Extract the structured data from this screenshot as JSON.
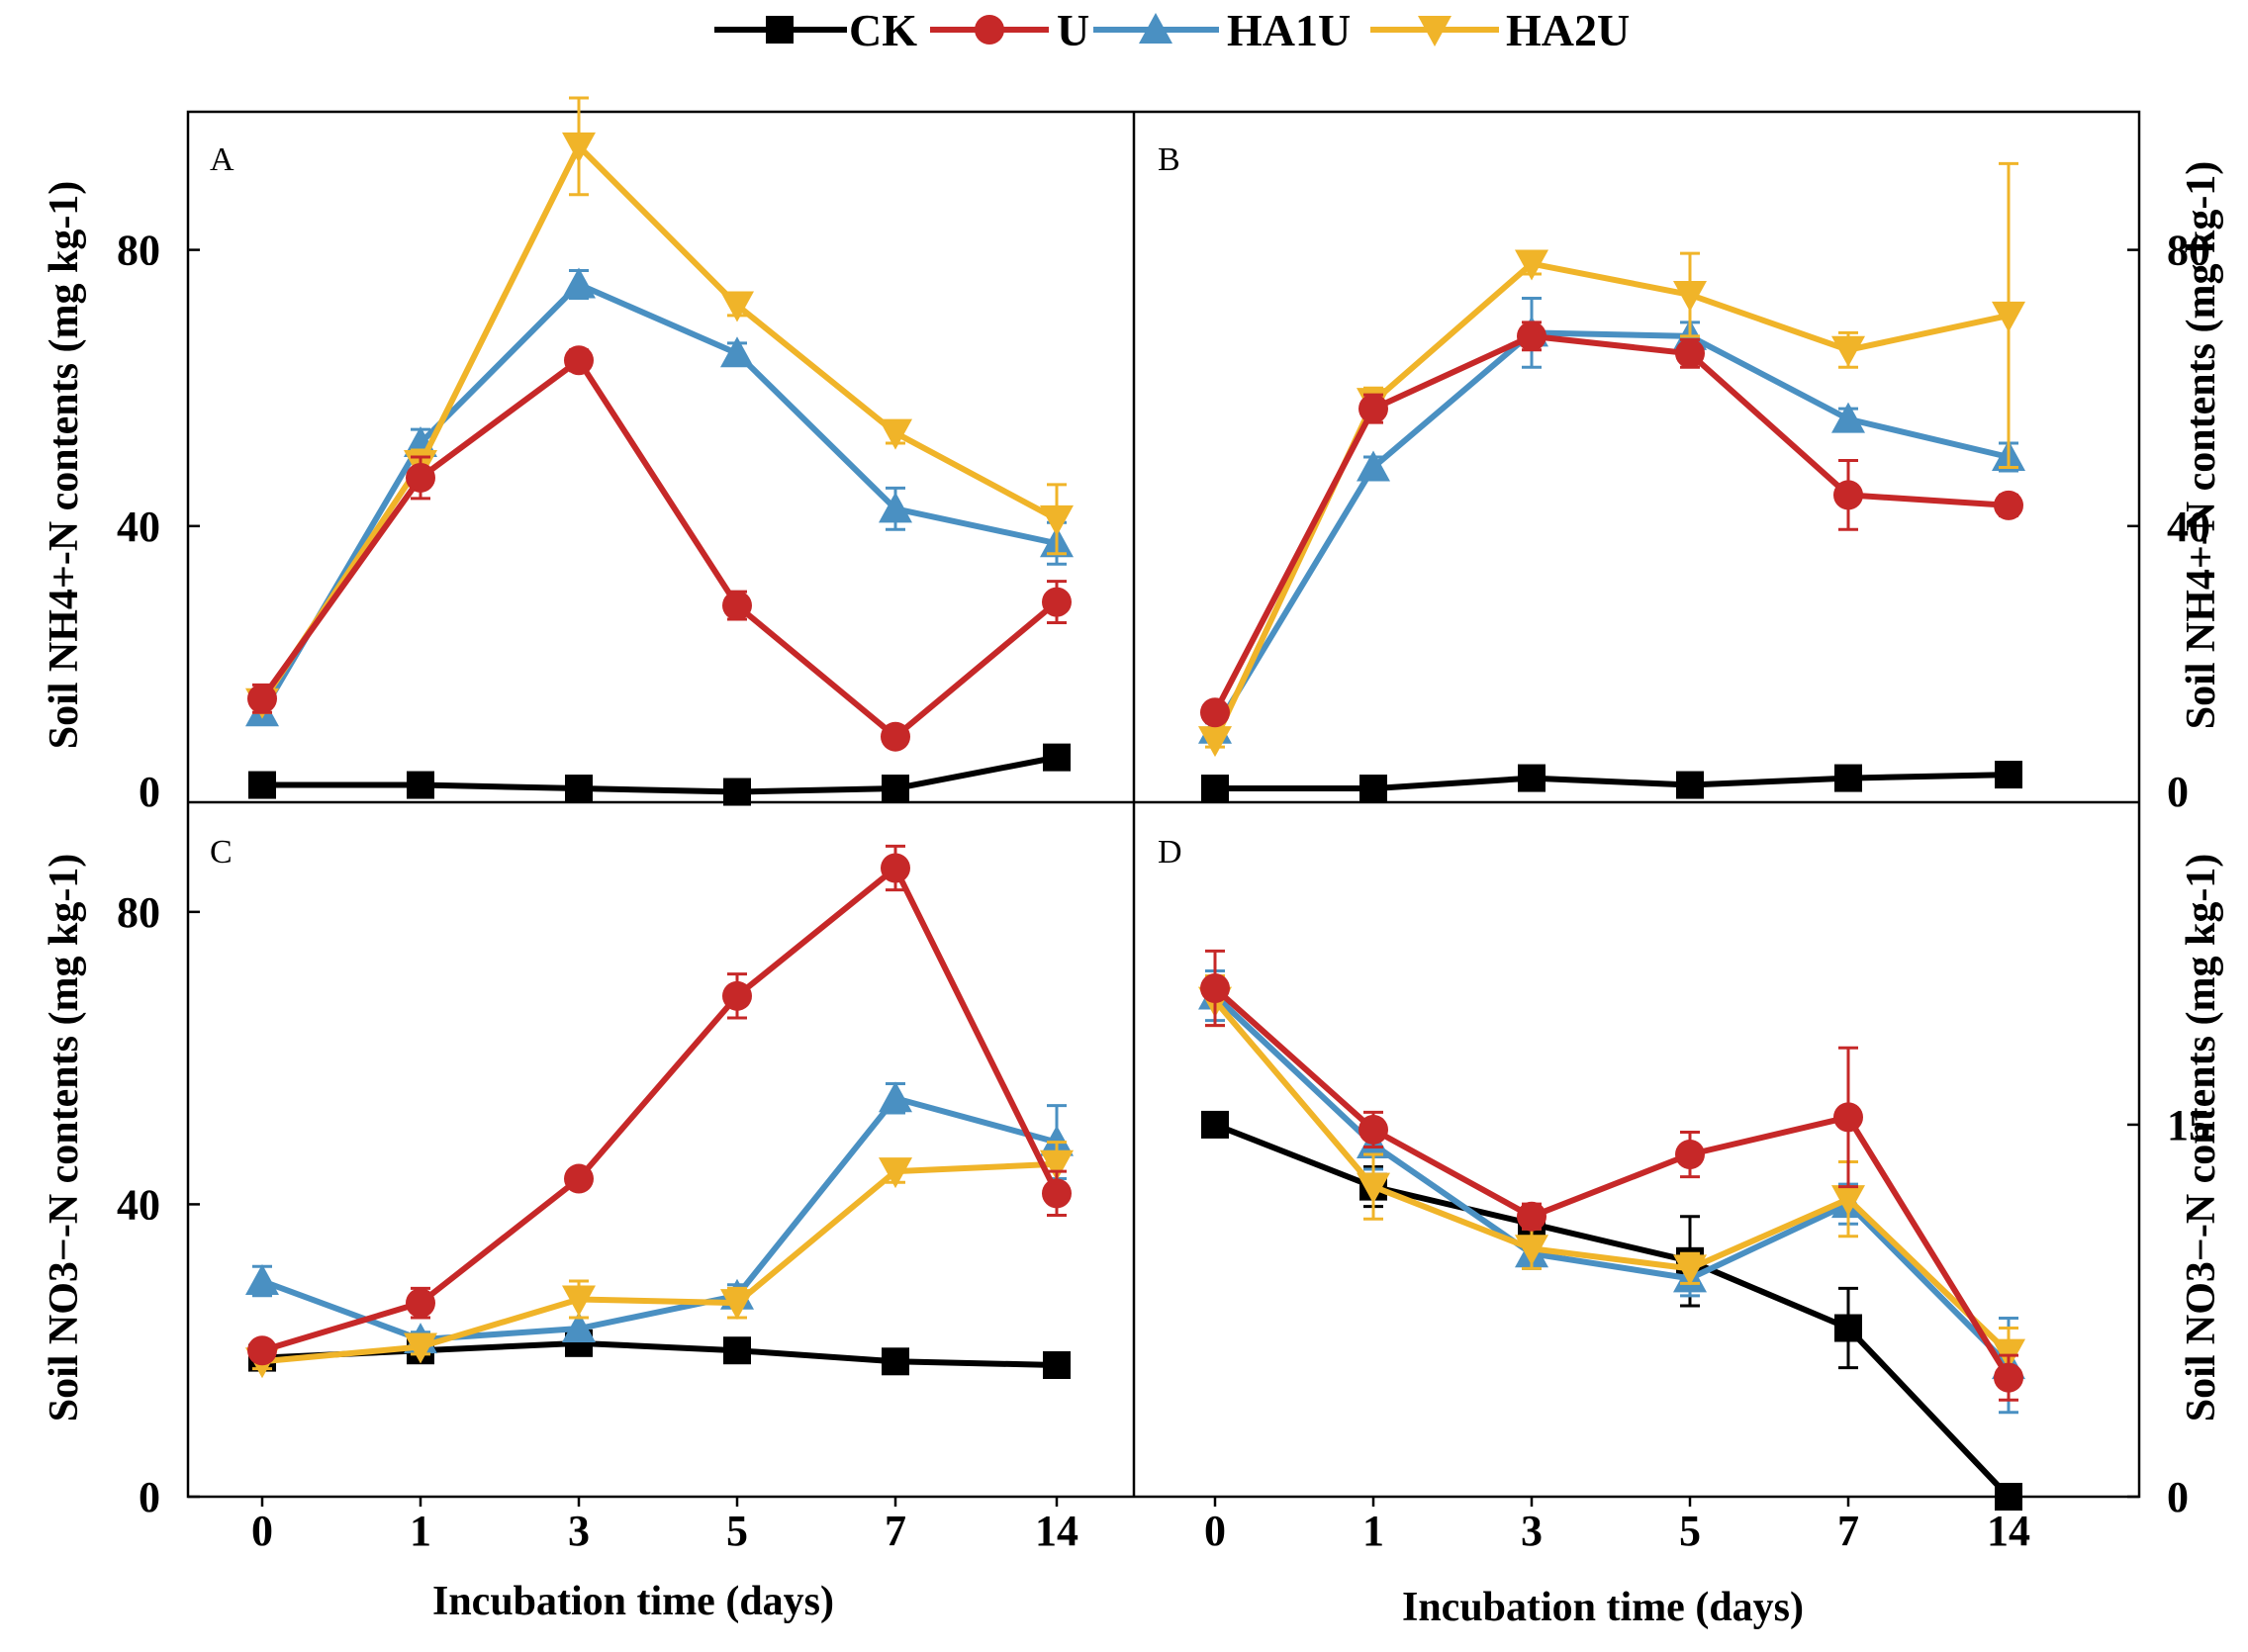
{
  "legend": [
    {
      "name": "CK",
      "color": "#000000",
      "marker": "square"
    },
    {
      "name": "U",
      "color": "#c62828",
      "marker": "circle"
    },
    {
      "name": "HA1U",
      "color": "#4a90c2",
      "marker": "triangle-up"
    },
    {
      "name": "HA2U",
      "color": "#f0b429",
      "marker": "triangle-down"
    }
  ],
  "axis_titles": {
    "x": "Incubation time (days)",
    "left_top": "Soil NH4+-N contents (mg kg-1)",
    "left_bottom": "Soil NO3−-N contents (mg kg-1)",
    "right_top": "Soil NH4+-N contents (mg kg-1)",
    "right_bottom": "Soil NO3−-N contents (mg kg-1)"
  },
  "chart_data": [
    {
      "panel": "A",
      "type": "line",
      "categories": [
        "0",
        "1",
        "3",
        "5",
        "7",
        "14"
      ],
      "ylim": [
        0,
        100
      ],
      "yticks": [
        0,
        40,
        80
      ],
      "series": [
        {
          "name": "CK",
          "values": [
            2.5,
            2.5,
            2,
            1.5,
            2,
            6.5
          ],
          "errors": [
            1,
            1,
            1,
            1,
            1,
            1
          ]
        },
        {
          "name": "U",
          "values": [
            15,
            47,
            64,
            28.5,
            9.5,
            29
          ],
          "errors": [
            2,
            3,
            1.5,
            2,
            1,
            3
          ]
        },
        {
          "name": "HA1U",
          "values": [
            13,
            52,
            75,
            65,
            42.5,
            37.5
          ],
          "errors": [
            1.5,
            2,
            2,
            1.5,
            3,
            3
          ]
        },
        {
          "name": "HA2U",
          "values": [
            14.5,
            49,
            95,
            72,
            53.5,
            41
          ],
          "errors": [
            1.5,
            2,
            7,
            1.5,
            1.5,
            5
          ]
        }
      ]
    },
    {
      "panel": "B",
      "type": "line",
      "categories": [
        "0",
        "1",
        "3",
        "5",
        "7",
        "14"
      ],
      "ylim": [
        0,
        100
      ],
      "yticks": [
        0,
        40,
        80
      ],
      "series": [
        {
          "name": "CK",
          "values": [
            2,
            2,
            3.5,
            2.5,
            3.5,
            4
          ],
          "errors": [
            1,
            1,
            1,
            1,
            1,
            1
          ]
        },
        {
          "name": "U",
          "values": [
            13,
            57,
            67.5,
            65,
            44.5,
            43
          ],
          "errors": [
            1,
            2,
            2,
            2,
            5,
            1.5
          ]
        },
        {
          "name": "HA1U",
          "values": [
            10.5,
            48.5,
            68,
            67.5,
            55.5,
            50
          ],
          "errors": [
            1,
            1.5,
            5,
            2,
            1.5,
            2
          ]
        },
        {
          "name": "HA2U",
          "values": [
            9,
            58,
            78,
            73.5,
            65.5,
            70.5
          ],
          "errors": [
            1,
            2,
            1.5,
            6,
            2.5,
            22
          ]
        }
      ]
    },
    {
      "panel": "C",
      "type": "line",
      "categories": [
        "0",
        "1",
        "3",
        "5",
        "7",
        "14"
      ],
      "ylim": [
        0,
        95
      ],
      "yticks": [
        0,
        40,
        80
      ],
      "series": [
        {
          "name": "CK",
          "values": [
            19,
            20,
            21,
            20,
            18.5,
            18
          ],
          "errors": [
            1,
            1,
            1,
            1,
            1,
            1
          ]
        },
        {
          "name": "U",
          "values": [
            20,
            26.5,
            43.5,
            68.5,
            86,
            41.5
          ],
          "errors": [
            1,
            2,
            1,
            3,
            3,
            3
          ]
        },
        {
          "name": "HA1U",
          "values": [
            29.5,
            21.5,
            23,
            27.5,
            54.5,
            48.5
          ],
          "errors": [
            2,
            1,
            1.5,
            1.5,
            2,
            5
          ]
        },
        {
          "name": "HA2U",
          "values": [
            18.5,
            20.5,
            27,
            26.5,
            44.5,
            45.5
          ],
          "errors": [
            1,
            1,
            2.5,
            2,
            1.5,
            3
          ]
        }
      ]
    },
    {
      "panel": "D",
      "type": "line",
      "categories": [
        "0",
        "1",
        "3",
        "5",
        "7",
        "14"
      ],
      "ylim": [
        0,
        28
      ],
      "yticks": [
        0,
        15
      ],
      "series": [
        {
          "name": "CK",
          "values": [
            15,
            12.5,
            11,
            9.5,
            6.8,
            0
          ],
          "errors": [
            0.4,
            0.8,
            0.6,
            1.8,
            1.6,
            0.2
          ]
        },
        {
          "name": "U",
          "values": [
            20.5,
            14.8,
            11.3,
            13.8,
            15.3,
            4.8
          ],
          "errors": [
            1.5,
            0.7,
            0.5,
            0.9,
            2.8,
            0.9
          ]
        },
        {
          "name": "HA1U",
          "values": [
            20.2,
            14.2,
            9.8,
            8.8,
            11.8,
            5.3
          ],
          "errors": [
            1,
            1,
            0.6,
            0.7,
            0.8,
            1.9
          ]
        },
        {
          "name": "HA2U",
          "values": [
            20,
            12.5,
            10,
            9.2,
            12,
            5.8
          ],
          "errors": [
            1,
            1.3,
            0.8,
            0.6,
            1.5,
            1
          ]
        }
      ]
    }
  ]
}
